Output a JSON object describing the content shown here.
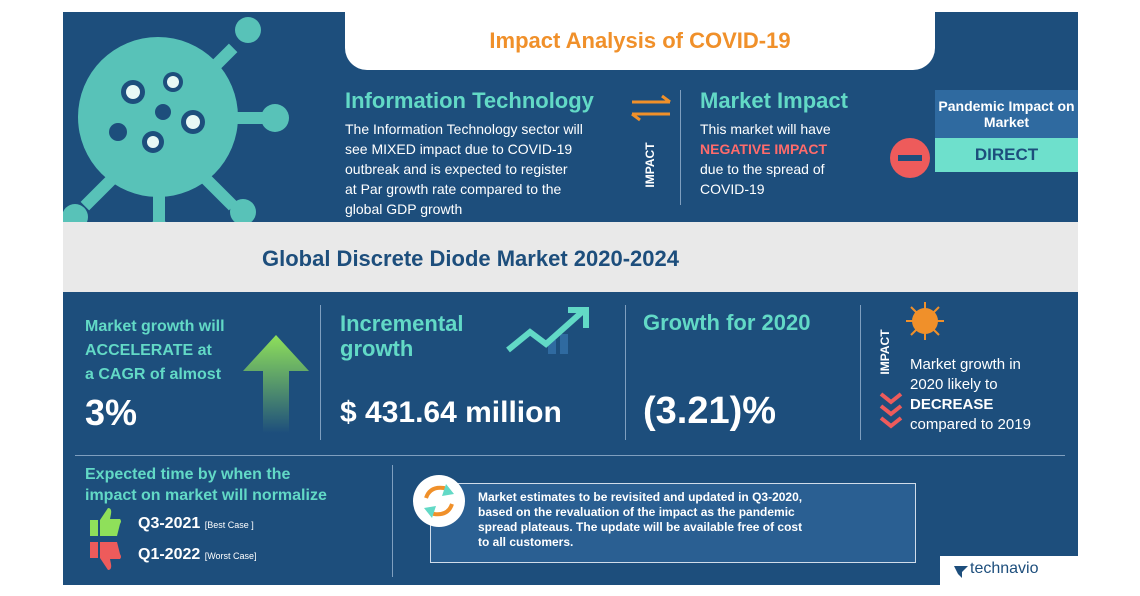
{
  "header": {
    "title": "Impact Analysis of COVID-19"
  },
  "sector": {
    "title": "Information Technology",
    "lines": [
      "The Information Technology sector will",
      "see MIXED  impact due to COVID-19",
      "outbreak and is expected to register",
      "at Par growth rate compared to the",
      "global GDP growth"
    ]
  },
  "impact_label": "IMPACT",
  "market_impact": {
    "title": "Market Impact",
    "lines": [
      "This market will have",
      "NEGATIVE IMPACT",
      "due to the spread of",
      "COVID-19"
    ]
  },
  "pandemic": {
    "title": "Pandemic Impact on Market",
    "value": "DIRECT"
  },
  "market": {
    "title": "Global Discrete Diode Market 2020-2024"
  },
  "stats": {
    "cagr": {
      "lines": [
        "Market growth will",
        "ACCELERATE at",
        "a CAGR of almost"
      ],
      "value": "3%"
    },
    "incremental": {
      "lines": [
        "Incremental",
        "growth"
      ],
      "value": "$ 431.64 million"
    },
    "growth_2020": {
      "title": "Growth for 2020",
      "value": "(3.21)%"
    },
    "outlook": {
      "label": "IMPACT",
      "lines": [
        "Market growth in",
        "2020 likely to",
        "DECREASE",
        "compared to 2019"
      ]
    }
  },
  "normalize": {
    "lines": [
      "Expected time by when the",
      "impact on market will normalize"
    ],
    "best": {
      "date": "Q3-2021",
      "label": "[Best Case ]"
    },
    "worst": {
      "date": "Q1-2022",
      "label": "[Worst Case]"
    }
  },
  "note": {
    "lines": [
      "Market estimates to be revisited and updated in Q3-2020,",
      "based on the revaluation of the impact as the pandemic",
      "spread plateaus. The update will be available free of cost",
      "to all customers."
    ]
  },
  "brand": "technavio"
}
